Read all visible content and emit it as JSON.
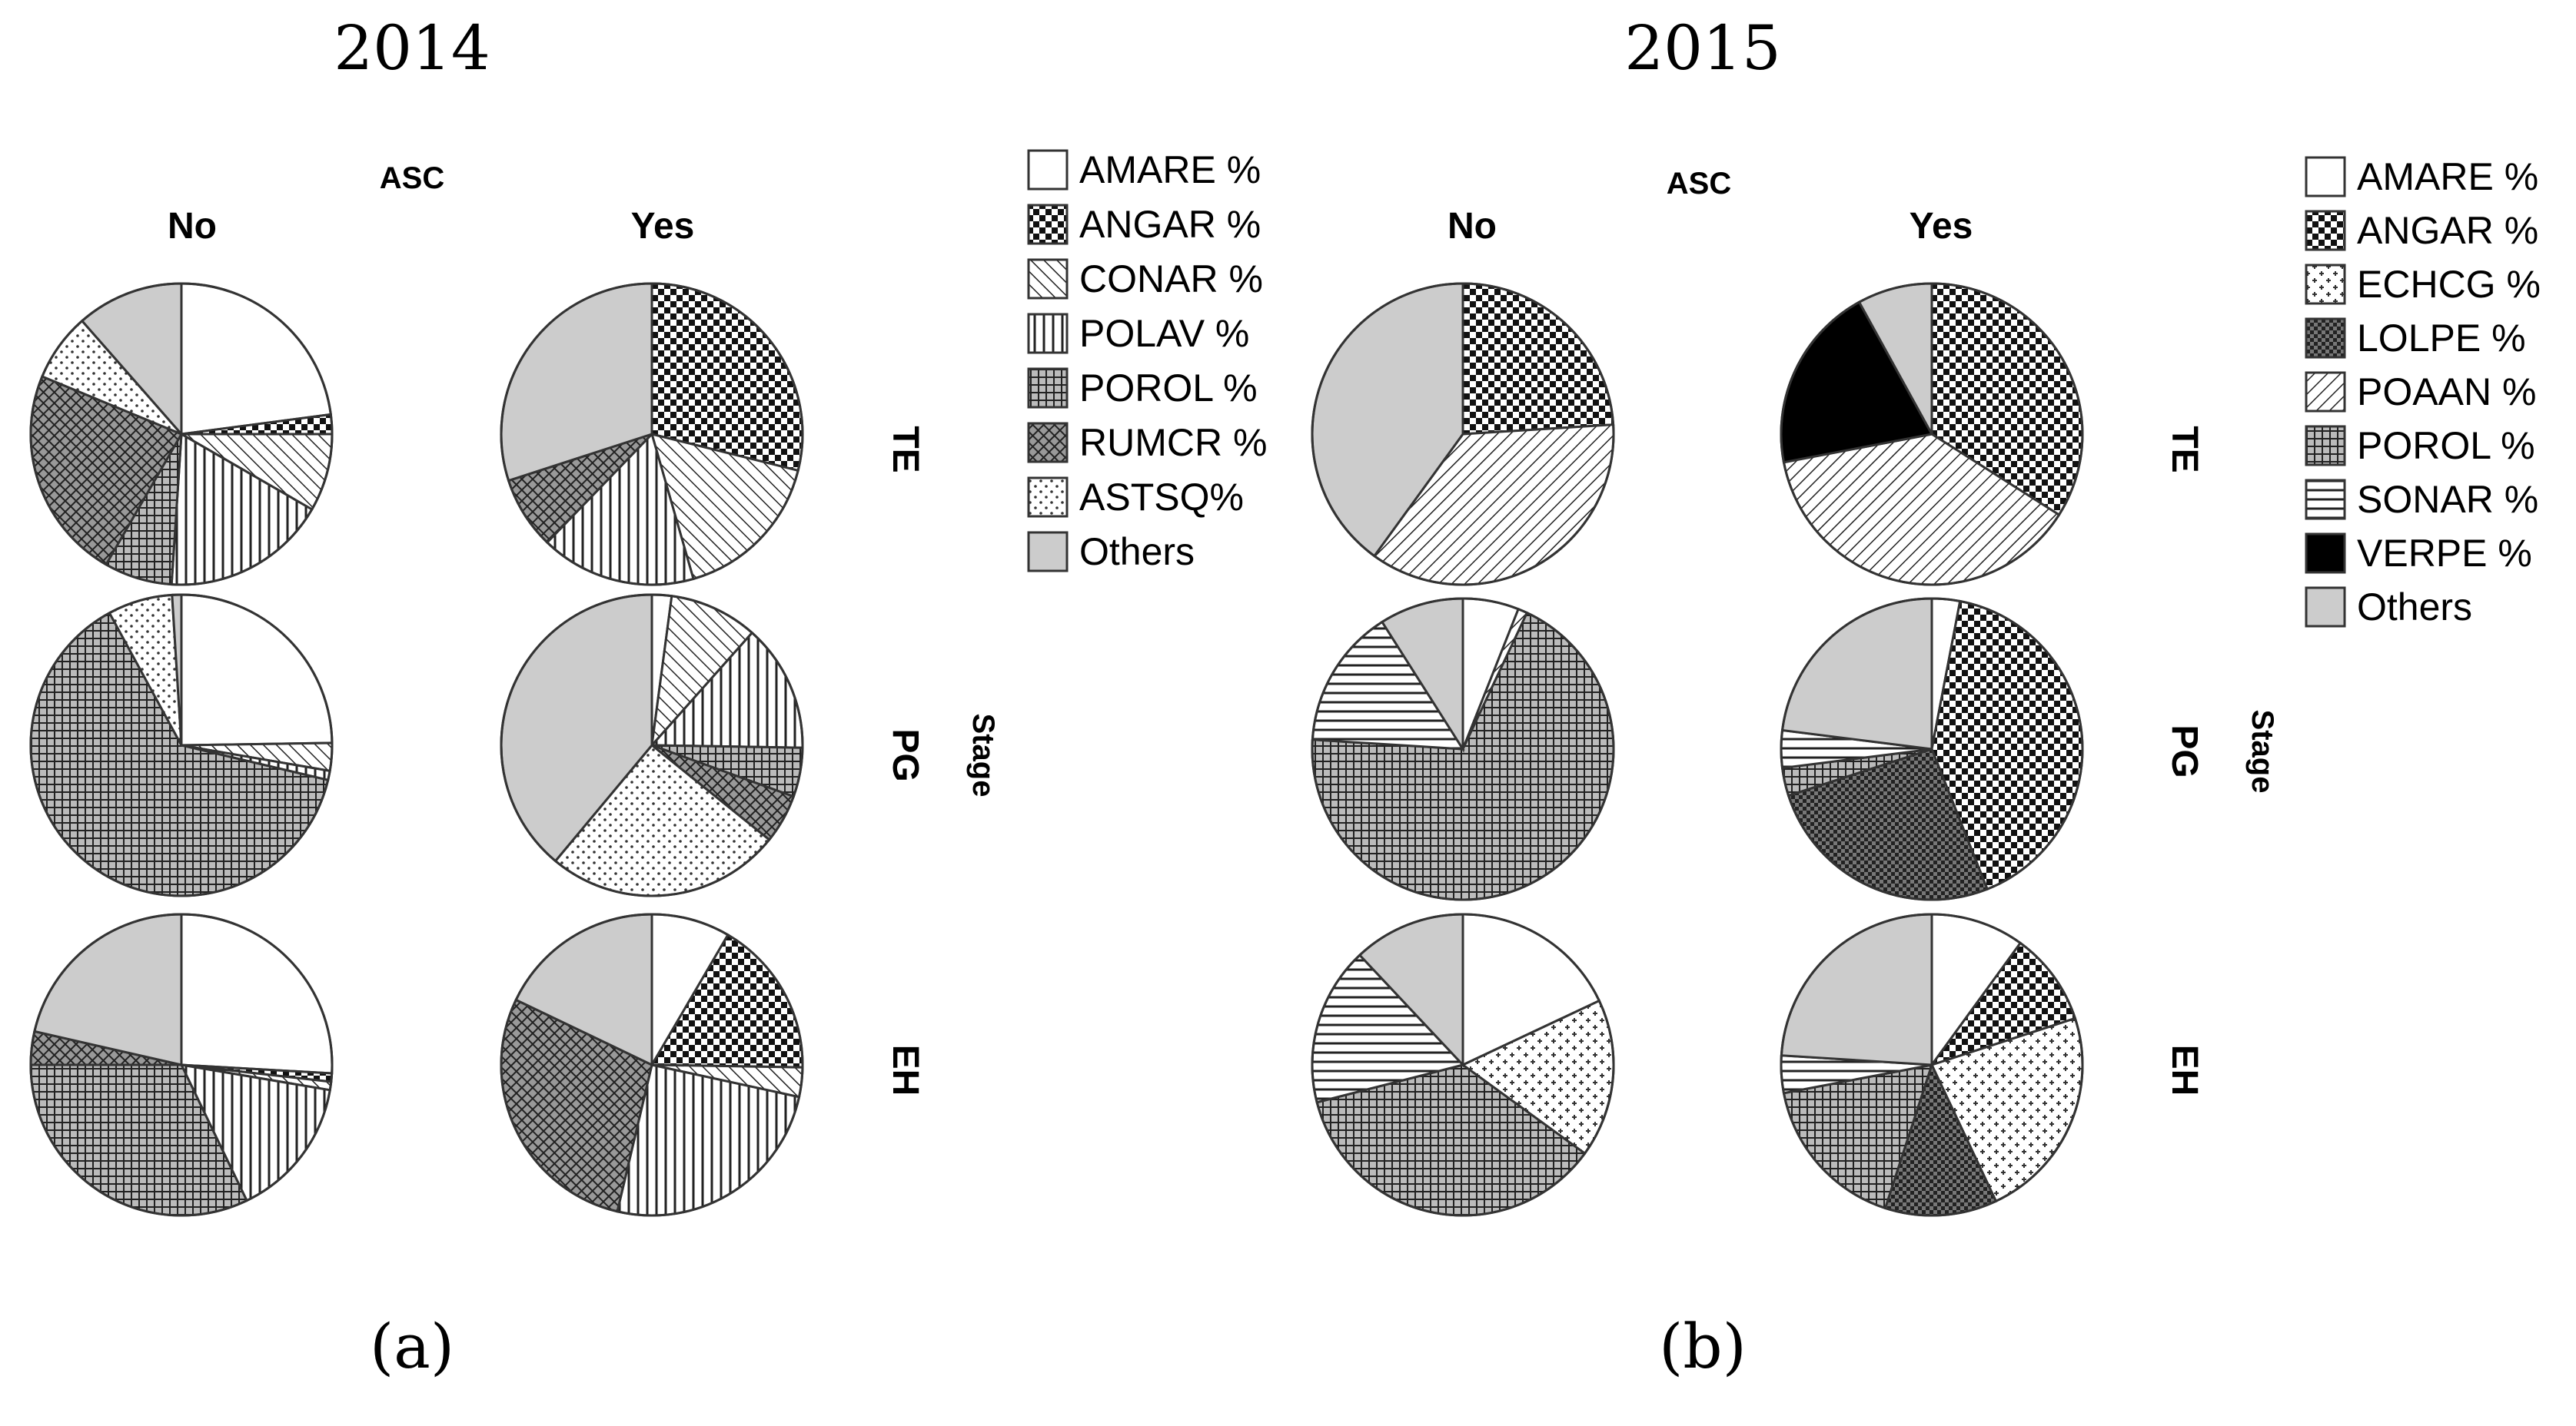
{
  "panels": [
    {
      "id": "a",
      "title": "2014",
      "panel_label": "(a)",
      "col_header": "ASC",
      "row_header": "Stage",
      "columns": [
        "No",
        "Yes"
      ],
      "rows": [
        "TE",
        "PG",
        "EH"
      ],
      "legend": [
        {
          "label": "AMARE %",
          "pattern": "white"
        },
        {
          "label": "ANGAR %",
          "pattern": "checker"
        },
        {
          "label": "CONAR %",
          "pattern": "diag-back"
        },
        {
          "label": "POLAV %",
          "pattern": "vlines"
        },
        {
          "label": "POROL %",
          "pattern": "grid"
        },
        {
          "label": "RUMCR %",
          "pattern": "xhatch"
        },
        {
          "label": "ASTSQ%",
          "pattern": "dots"
        },
        {
          "label": "Others",
          "pattern": "gray"
        }
      ]
    },
    {
      "id": "b",
      "title": "2015",
      "panel_label": "(b)",
      "col_header": "ASC",
      "row_header": "Stage",
      "columns": [
        "No",
        "Yes"
      ],
      "rows": [
        "TE",
        "PG",
        "EH"
      ],
      "legend": [
        {
          "label": "AMARE %",
          "pattern": "white"
        },
        {
          "label": "ANGAR %",
          "pattern": "checker"
        },
        {
          "label": "ECHCG %",
          "pattern": "plus"
        },
        {
          "label": "LOLPE %",
          "pattern": "darkcheck"
        },
        {
          "label": "POAAN %",
          "pattern": "diag-fwd"
        },
        {
          "label": "POROL %",
          "pattern": "grid"
        },
        {
          "label": "SONAR %",
          "pattern": "hlines"
        },
        {
          "label": "VERPE %",
          "pattern": "black"
        },
        {
          "label": "Others",
          "pattern": "gray"
        }
      ]
    }
  ],
  "chart_data": [
    {
      "type": "pie",
      "title": "2014",
      "facet_columns": [
        "No",
        "Yes"
      ],
      "facet_rows": [
        "TE",
        "PG",
        "EH"
      ],
      "series_order": [
        "AMARE %",
        "ANGAR %",
        "CONAR %",
        "POLAV %",
        "POROL %",
        "RUMCR %",
        "ASTSQ%",
        "Others"
      ],
      "pies": [
        {
          "row": "TE",
          "col": "No",
          "values": [
            22,
            2,
            8,
            17,
            7,
            22,
            7,
            11
          ]
        },
        {
          "row": "TE",
          "col": "Yes",
          "values": [
            0,
            26,
            15,
            15,
            0,
            7,
            0,
            27
          ]
        },
        {
          "row": "PG",
          "col": "No",
          "values": [
            25,
            0,
            3,
            1,
            64,
            0,
            7,
            1
          ]
        },
        {
          "row": "PG",
          "col": "Yes",
          "values": [
            2,
            0,
            9,
            13,
            5,
            5,
            24,
            37
          ]
        },
        {
          "row": "EH",
          "col": "No",
          "values": [
            29,
            1,
            1,
            17,
            36,
            4,
            0,
            24
          ]
        },
        {
          "row": "EH",
          "col": "Yes",
          "values": [
            8,
            16,
            3,
            24,
            0,
            27,
            0,
            17
          ]
        }
      ]
    },
    {
      "type": "pie",
      "title": "2015",
      "facet_columns": [
        "No",
        "Yes"
      ],
      "facet_rows": [
        "TE",
        "PG",
        "EH"
      ],
      "series_order": [
        "AMARE %",
        "ANGAR %",
        "ECHCG %",
        "LOLPE %",
        "POAAN %",
        "POROL %",
        "SONAR %",
        "VERPE %",
        "Others"
      ],
      "pies": [
        {
          "row": "TE",
          "col": "No",
          "values": [
            0,
            24,
            0,
            0,
            36,
            0,
            0,
            0,
            40
          ]
        },
        {
          "row": "TE",
          "col": "Yes",
          "values": [
            0,
            34,
            0,
            0,
            38,
            0,
            0,
            20,
            8
          ]
        },
        {
          "row": "PG",
          "col": "No",
          "values": [
            6,
            0,
            0,
            0,
            1,
            69,
            15,
            0,
            9
          ]
        },
        {
          "row": "PG",
          "col": "Yes",
          "values": [
            3,
            41,
            0,
            26,
            0,
            3,
            4,
            0,
            23
          ]
        },
        {
          "row": "EH",
          "col": "No",
          "values": [
            18,
            0,
            17,
            0,
            0,
            36,
            17,
            0,
            12
          ]
        },
        {
          "row": "EH",
          "col": "Yes",
          "values": [
            10,
            10,
            23,
            12,
            0,
            17,
            4,
            0,
            24
          ]
        }
      ]
    }
  ]
}
